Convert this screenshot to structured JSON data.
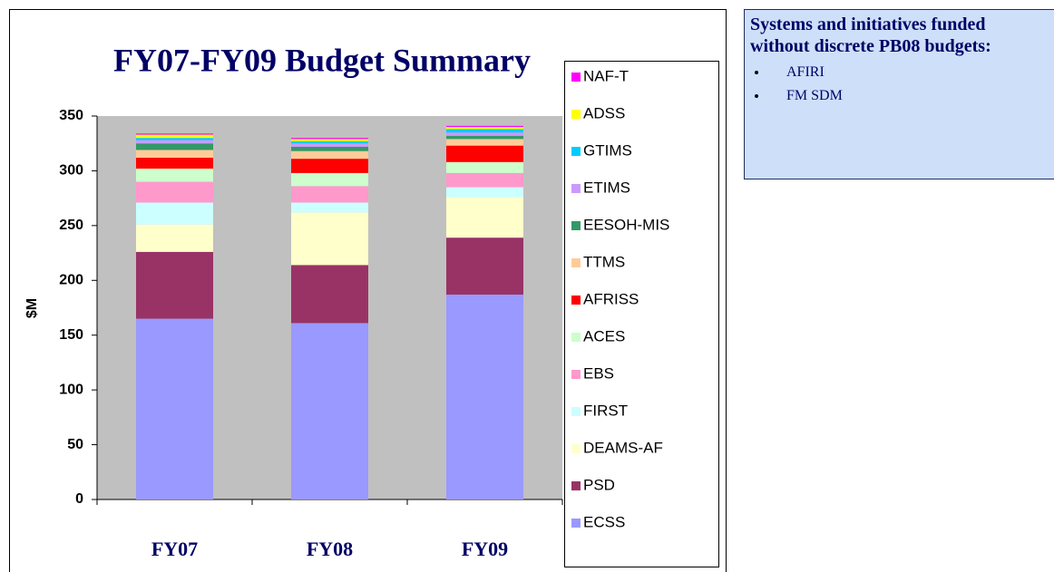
{
  "chart_data": {
    "type": "stacked-bar",
    "title": "FY07-FY09 Budget Summary",
    "y_label": "$M",
    "categories": [
      "FY07",
      "FY08",
      "FY09"
    ],
    "series": [
      {
        "name": "ECSS",
        "color": "#9999ff",
        "values": [
          165,
          161,
          187
        ]
      },
      {
        "name": "PSD",
        "color": "#993366",
        "values": [
          61,
          53,
          52
        ]
      },
      {
        "name": "DEAMS-AF",
        "color": "#ffffcc",
        "values": [
          25,
          48,
          37
        ]
      },
      {
        "name": "FIRST",
        "color": "#ccffff",
        "values": [
          20,
          9,
          9
        ]
      },
      {
        "name": "EBS",
        "color": "#ff99cc",
        "values": [
          19,
          15,
          13
        ]
      },
      {
        "name": "ACES",
        "color": "#ccffcc",
        "values": [
          12,
          12,
          10
        ]
      },
      {
        "name": "AFRISS",
        "color": "#ff0000",
        "values": [
          10,
          13,
          15
        ]
      },
      {
        "name": "TTMS",
        "color": "#ffcc99",
        "values": [
          7,
          7,
          6
        ]
      },
      {
        "name": "EESOH-MIS",
        "color": "#339966",
        "values": [
          6,
          4,
          3
        ]
      },
      {
        "name": "ETIMS",
        "color": "#cc99ff",
        "values": [
          3,
          3,
          3
        ]
      },
      {
        "name": "GTIMS",
        "color": "#00ccff",
        "values": [
          2,
          2,
          3
        ]
      },
      {
        "name": "ADSS",
        "color": "#ffff00",
        "values": [
          3,
          2,
          2
        ]
      },
      {
        "name": "NAF-T",
        "color": "#ff00ff",
        "values": [
          1,
          1,
          1
        ]
      }
    ],
    "ylim": [
      0,
      350
    ],
    "yticks": [
      0,
      50,
      100,
      150,
      200,
      250,
      300,
      350
    ],
    "grid": false,
    "legend": "right"
  },
  "note": {
    "title": "Systems and initiatives funded without discrete PB08 budgets:",
    "items": [
      "AFIRI",
      "FM SDM"
    ]
  }
}
